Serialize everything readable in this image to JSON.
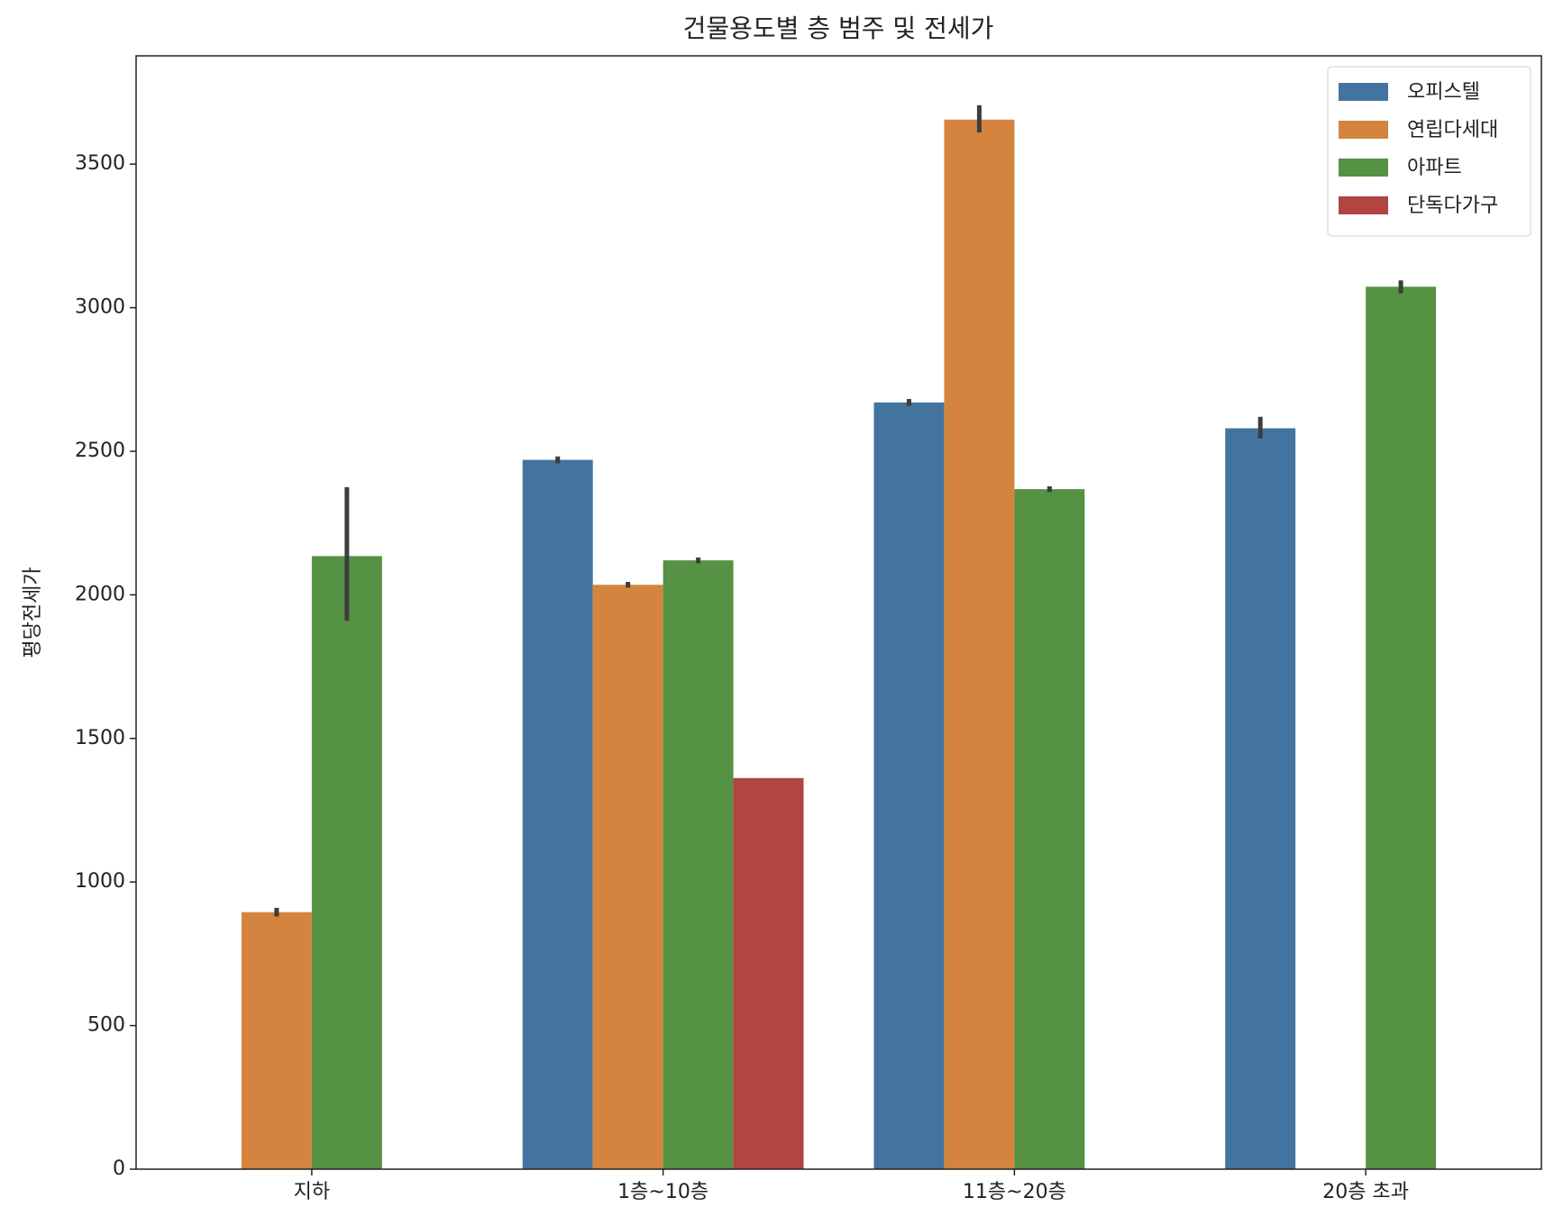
{
  "chart_data": {
    "type": "bar",
    "title": "건물용도별 층 범주 및 전세가",
    "y_label": "평당전세가",
    "categories": [
      "지하",
      "1층~10층",
      "11층~20층",
      "20층 초과"
    ],
    "series": [
      {
        "name": "오피스텔",
        "color": "#4374a0",
        "values": [
          null,
          2470,
          2670,
          2580
        ],
        "ci_low": [
          null,
          2458,
          2658,
          2545
        ],
        "ci_high": [
          null,
          2482,
          2682,
          2620
        ]
      },
      {
        "name": "연립다세대",
        "color": "#d4843e",
        "values": [
          895,
          2035,
          3655,
          null
        ],
        "ci_low": [
          880,
          2025,
          3610,
          null
        ],
        "ci_high": [
          910,
          2045,
          3705,
          null
        ]
      },
      {
        "name": "아파트",
        "color": "#559244",
        "values": [
          2135,
          2120,
          2368,
          3073
        ],
        "ci_low": [
          1910,
          2110,
          2358,
          3050
        ],
        "ci_high": [
          2375,
          2130,
          2378,
          3095
        ]
      },
      {
        "name": "단독다가구",
        "color": "#b04542",
        "values": [
          null,
          1362,
          null,
          null
        ],
        "ci_low": [
          null,
          null,
          null,
          null
        ],
        "ci_high": [
          null,
          null,
          null,
          null
        ]
      }
    ],
    "ylim": [
      0,
      3877
    ],
    "yticks": [
      0,
      500,
      1000,
      1500,
      2000,
      2500,
      3000,
      3500
    ],
    "legend": "upper right",
    "error_color": "#3d3d3d"
  }
}
